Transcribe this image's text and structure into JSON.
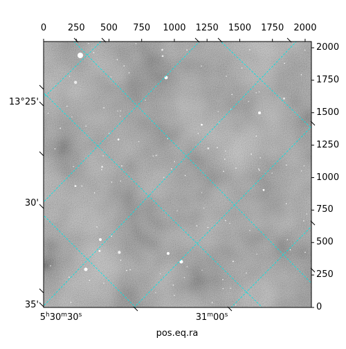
{
  "figure": {
    "x_axis_label": "pos.eq.ra",
    "top_ticks": [
      "0",
      "250",
      "500",
      "750",
      "1000",
      "1250",
      "1500",
      "1750",
      "2000"
    ],
    "right_ticks": [
      "0",
      "250",
      "500",
      "750",
      "1000",
      "1250",
      "1500",
      "1750",
      "2000"
    ],
    "dec_ticks": [
      "13°25'",
      "30'",
      "35'"
    ],
    "ra_ticks": [
      {
        "h": "5",
        "m": "30",
        "s": "30",
        "sep": [
          "h",
          "m",
          "s"
        ]
      },
      {
        "h": "",
        "m": "31",
        "s": "00",
        "sep": [
          "",
          "m",
          "s"
        ]
      }
    ],
    "grid_color": "#00e5e5",
    "image_kind": "grayscale star field"
  }
}
